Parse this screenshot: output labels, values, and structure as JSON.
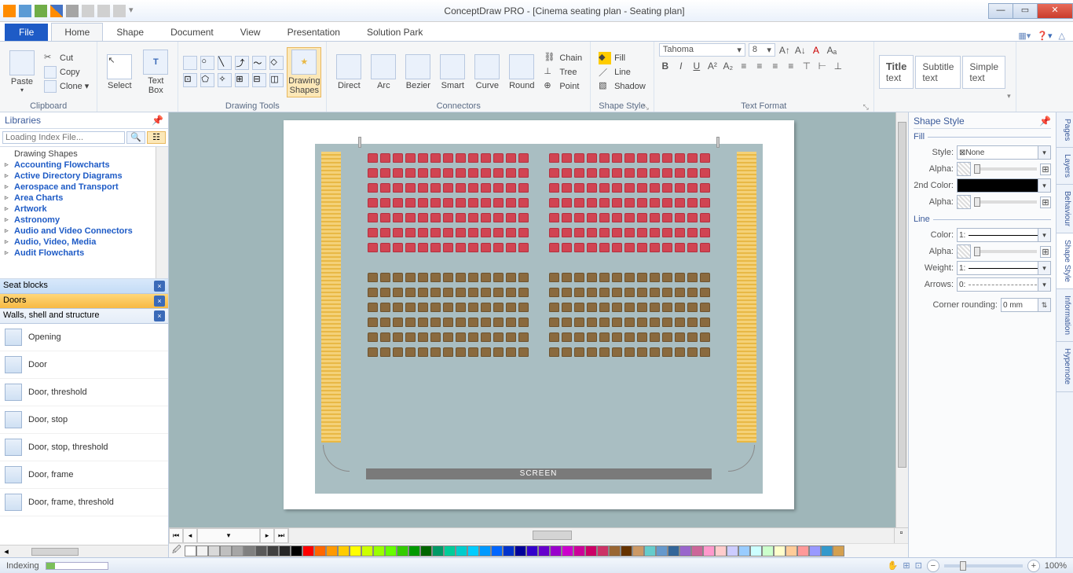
{
  "app": {
    "title": "ConceptDraw PRO - [Cinema seating plan - Seating plan]"
  },
  "win": {
    "min": "—",
    "max": "▭",
    "close": "✕"
  },
  "qat_icons": [
    "cd",
    "undo",
    "redo",
    "grid",
    "save",
    "print",
    "preview",
    "more",
    "dd"
  ],
  "ribbon": {
    "file": "File",
    "tabs": [
      "Home",
      "Shape",
      "Document",
      "View",
      "Presentation",
      "Solution Park"
    ],
    "active": 0,
    "groups": {
      "clipboard": {
        "label": "Clipboard",
        "paste": "Paste",
        "cut": "Cut",
        "copy": "Copy",
        "clone": "Clone ▾"
      },
      "select": {
        "select": "Select",
        "textbox": "Text\nBox"
      },
      "drawingtools": {
        "label": "Drawing Tools",
        "big": "Drawing\nShapes"
      },
      "connectors": {
        "label": "Connectors",
        "items": [
          "Direct",
          "Arc",
          "Bezier",
          "Smart",
          "Curve",
          "Round"
        ],
        "side_chain": "Chain",
        "side_tree": "Tree",
        "side_point": "Point"
      },
      "shapestyle": {
        "label": "Shape Style",
        "fill": "Fill",
        "line": "Line",
        "shadow": "Shadow"
      },
      "textformat": {
        "label": "Text Format",
        "font": "Tahoma",
        "size": "8"
      },
      "quickstyles": {
        "title": "Title\ntext",
        "subtitle": "Subtitle\ntext",
        "simple": "Simple\ntext"
      }
    }
  },
  "left": {
    "header": "Libraries",
    "search_placeholder": "Loading Index File...",
    "tree": [
      {
        "t": "Drawing Shapes",
        "plain": true
      },
      {
        "t": "Accounting Flowcharts",
        "b": true
      },
      {
        "t": "Active Directory Diagrams",
        "b": true
      },
      {
        "t": "Aerospace and Transport",
        "b": true
      },
      {
        "t": "Area Charts",
        "b": true
      },
      {
        "t": "Artwork",
        "b": true
      },
      {
        "t": "Astronomy",
        "b": true
      },
      {
        "t": "Audio and Video Connectors",
        "b": true
      },
      {
        "t": "Audio, Video, Media",
        "b": true
      },
      {
        "t": "Audit Flowcharts",
        "b": true
      }
    ],
    "lib_tabs": [
      {
        "t": "Seat blocks",
        "cls": "a"
      },
      {
        "t": "Doors",
        "cls": "b"
      },
      {
        "t": "Walls, shell and structure",
        "cls": "c"
      }
    ],
    "shapes": [
      "Opening",
      "Door",
      "Door, threshold",
      "Door, stop",
      "Door, stop, threshold",
      "Door, frame",
      "Door, frame, threshold"
    ]
  },
  "canvas": {
    "screen_label": "SCREEN",
    "seating": {
      "red_rows": 7,
      "brown_rows": 6,
      "seats_per_row": 26,
      "aisle_after": 13,
      "colors": {
        "red": "#d14452",
        "brown": "#8a6a3e",
        "aisle": "#e8b845",
        "floor": "#a9bec2",
        "screen": "#7a7a7a"
      }
    }
  },
  "right": {
    "header": "Shape Style",
    "fill_legend": "Fill",
    "line_legend": "Line",
    "style_lbl": "Style:",
    "style_val": "None",
    "alpha_lbl": "Alpha:",
    "color2_lbl": "2nd Color:",
    "color_lbl": "Color:",
    "color_val": "1:",
    "weight_lbl": "Weight:",
    "weight_val": "1:",
    "arrows_lbl": "Arrows:",
    "arrows_val": "0:",
    "corner_lbl": "Corner rounding:",
    "corner_val": "0 mm",
    "side_tabs": [
      "Pages",
      "Layers",
      "Behaviour",
      "Shape Style",
      "Information",
      "Hypernote"
    ],
    "side_active": 3
  },
  "palette": [
    "#ffffff",
    "#f2f2f2",
    "#d9d9d9",
    "#bfbfbf",
    "#a6a6a6",
    "#808080",
    "#595959",
    "#404040",
    "#262626",
    "#000000",
    "#ff0000",
    "#ff6600",
    "#ff9900",
    "#ffcc00",
    "#ffff00",
    "#ccff00",
    "#99ff00",
    "#66ff00",
    "#33cc00",
    "#009900",
    "#006600",
    "#009966",
    "#00cc99",
    "#00cccc",
    "#00ccff",
    "#0099ff",
    "#0066ff",
    "#0033cc",
    "#000099",
    "#3300cc",
    "#6600cc",
    "#9900cc",
    "#cc00cc",
    "#cc0099",
    "#cc0066",
    "#cc3366",
    "#996633",
    "#663300",
    "#cc9966",
    "#66cccc",
    "#6699cc",
    "#336699",
    "#9966cc",
    "#cc6699",
    "#ff99cc",
    "#ffcccc",
    "#ccccff",
    "#99ccff",
    "#ccffff",
    "#ccffcc",
    "#ffffcc",
    "#ffcc99",
    "#ff9999",
    "#9999ff",
    "#3399cc",
    "#d4a050"
  ],
  "status": {
    "text": "Indexing",
    "zoom": "100%"
  }
}
